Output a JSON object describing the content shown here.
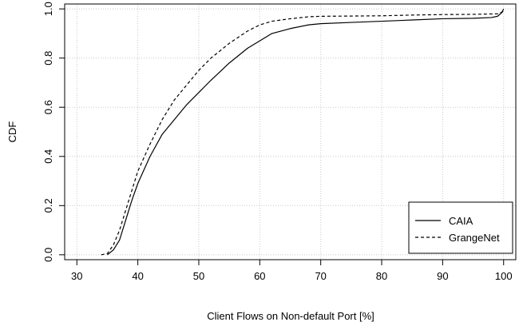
{
  "chart_data": {
    "type": "line",
    "title": "",
    "xlabel": "Client Flows on Non-default Port [%]",
    "ylabel": "CDF",
    "xlim": [
      28,
      102
    ],
    "ylim": [
      -0.02,
      1.02
    ],
    "x_ticks": [
      30,
      40,
      50,
      60,
      70,
      80,
      90,
      100
    ],
    "y_ticks": [
      0.0,
      0.2,
      0.4,
      0.6,
      0.8,
      1.0
    ],
    "x_tick_labels": [
      "30",
      "40",
      "50",
      "60",
      "70",
      "80",
      "90",
      "100"
    ],
    "y_tick_labels": [
      "0.0",
      "0.2",
      "0.4",
      "0.6",
      "0.8",
      "1.0"
    ],
    "grid": true,
    "legend_position": "bottom-right",
    "series": [
      {
        "name": "CAIA",
        "style": "solid",
        "points": [
          [
            35,
            0.0
          ],
          [
            36,
            0.02
          ],
          [
            37,
            0.06
          ],
          [
            38,
            0.14
          ],
          [
            39,
            0.22
          ],
          [
            40,
            0.29
          ],
          [
            42,
            0.4
          ],
          [
            44,
            0.49
          ],
          [
            46,
            0.55
          ],
          [
            48,
            0.61
          ],
          [
            50,
            0.66
          ],
          [
            52,
            0.71
          ],
          [
            55,
            0.78
          ],
          [
            58,
            0.84
          ],
          [
            60,
            0.87
          ],
          [
            62,
            0.9
          ],
          [
            65,
            0.92
          ],
          [
            68,
            0.935
          ],
          [
            70,
            0.94
          ],
          [
            75,
            0.945
          ],
          [
            80,
            0.95
          ],
          [
            85,
            0.955
          ],
          [
            90,
            0.96
          ],
          [
            95,
            0.962
          ],
          [
            98,
            0.965
          ],
          [
            99,
            0.97
          ],
          [
            99.7,
            0.985
          ],
          [
            100,
            1.0
          ]
        ]
      },
      {
        "name": "GrangeNet",
        "style": "dashed",
        "points": [
          [
            34,
            0.0
          ],
          [
            35,
            0.005
          ],
          [
            36,
            0.04
          ],
          [
            37,
            0.1
          ],
          [
            38,
            0.18
          ],
          [
            39,
            0.26
          ],
          [
            40,
            0.34
          ],
          [
            42,
            0.45
          ],
          [
            44,
            0.55
          ],
          [
            46,
            0.63
          ],
          [
            48,
            0.69
          ],
          [
            50,
            0.75
          ],
          [
            52,
            0.8
          ],
          [
            55,
            0.86
          ],
          [
            58,
            0.91
          ],
          [
            60,
            0.935
          ],
          [
            62,
            0.95
          ],
          [
            65,
            0.96
          ],
          [
            68,
            0.968
          ],
          [
            70,
            0.97
          ],
          [
            80,
            0.972
          ],
          [
            85,
            0.975
          ],
          [
            90,
            0.977
          ],
          [
            95,
            0.978
          ],
          [
            99,
            0.98
          ],
          [
            100,
            0.99
          ]
        ]
      }
    ]
  }
}
